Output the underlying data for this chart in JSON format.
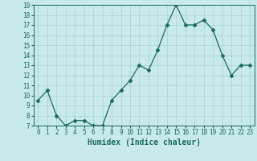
{
  "x": [
    0,
    1,
    2,
    3,
    4,
    5,
    6,
    7,
    8,
    9,
    10,
    11,
    12,
    13,
    14,
    15,
    16,
    17,
    18,
    19,
    20,
    21,
    22,
    23
  ],
  "y": [
    9.5,
    10.5,
    8.0,
    7.0,
    7.5,
    7.5,
    7.0,
    7.0,
    9.5,
    10.5,
    11.5,
    13.0,
    12.5,
    14.5,
    17.0,
    19.0,
    17.0,
    17.0,
    17.5,
    16.5,
    14.0,
    12.0,
    13.0,
    13.0
  ],
  "xlabel": "Humidex (Indice chaleur)",
  "ylim": [
    7,
    19
  ],
  "xlim_min": -0.5,
  "xlim_max": 23.5,
  "yticks": [
    7,
    8,
    9,
    10,
    11,
    12,
    13,
    14,
    15,
    16,
    17,
    18,
    19
  ],
  "xticks": [
    0,
    1,
    2,
    3,
    4,
    5,
    6,
    7,
    8,
    9,
    10,
    11,
    12,
    13,
    14,
    15,
    16,
    17,
    18,
    19,
    20,
    21,
    22,
    23
  ],
  "line_color": "#1a6b5a",
  "marker": "D",
  "marker_size": 2.5,
  "bg_color": "#c8eae8",
  "grid_color": "#a8d4d0",
  "axes_color": "#1a6b5a",
  "label_color": "#1a6b5a",
  "tick_fontsize": 5.5,
  "xlabel_fontsize": 7.0
}
